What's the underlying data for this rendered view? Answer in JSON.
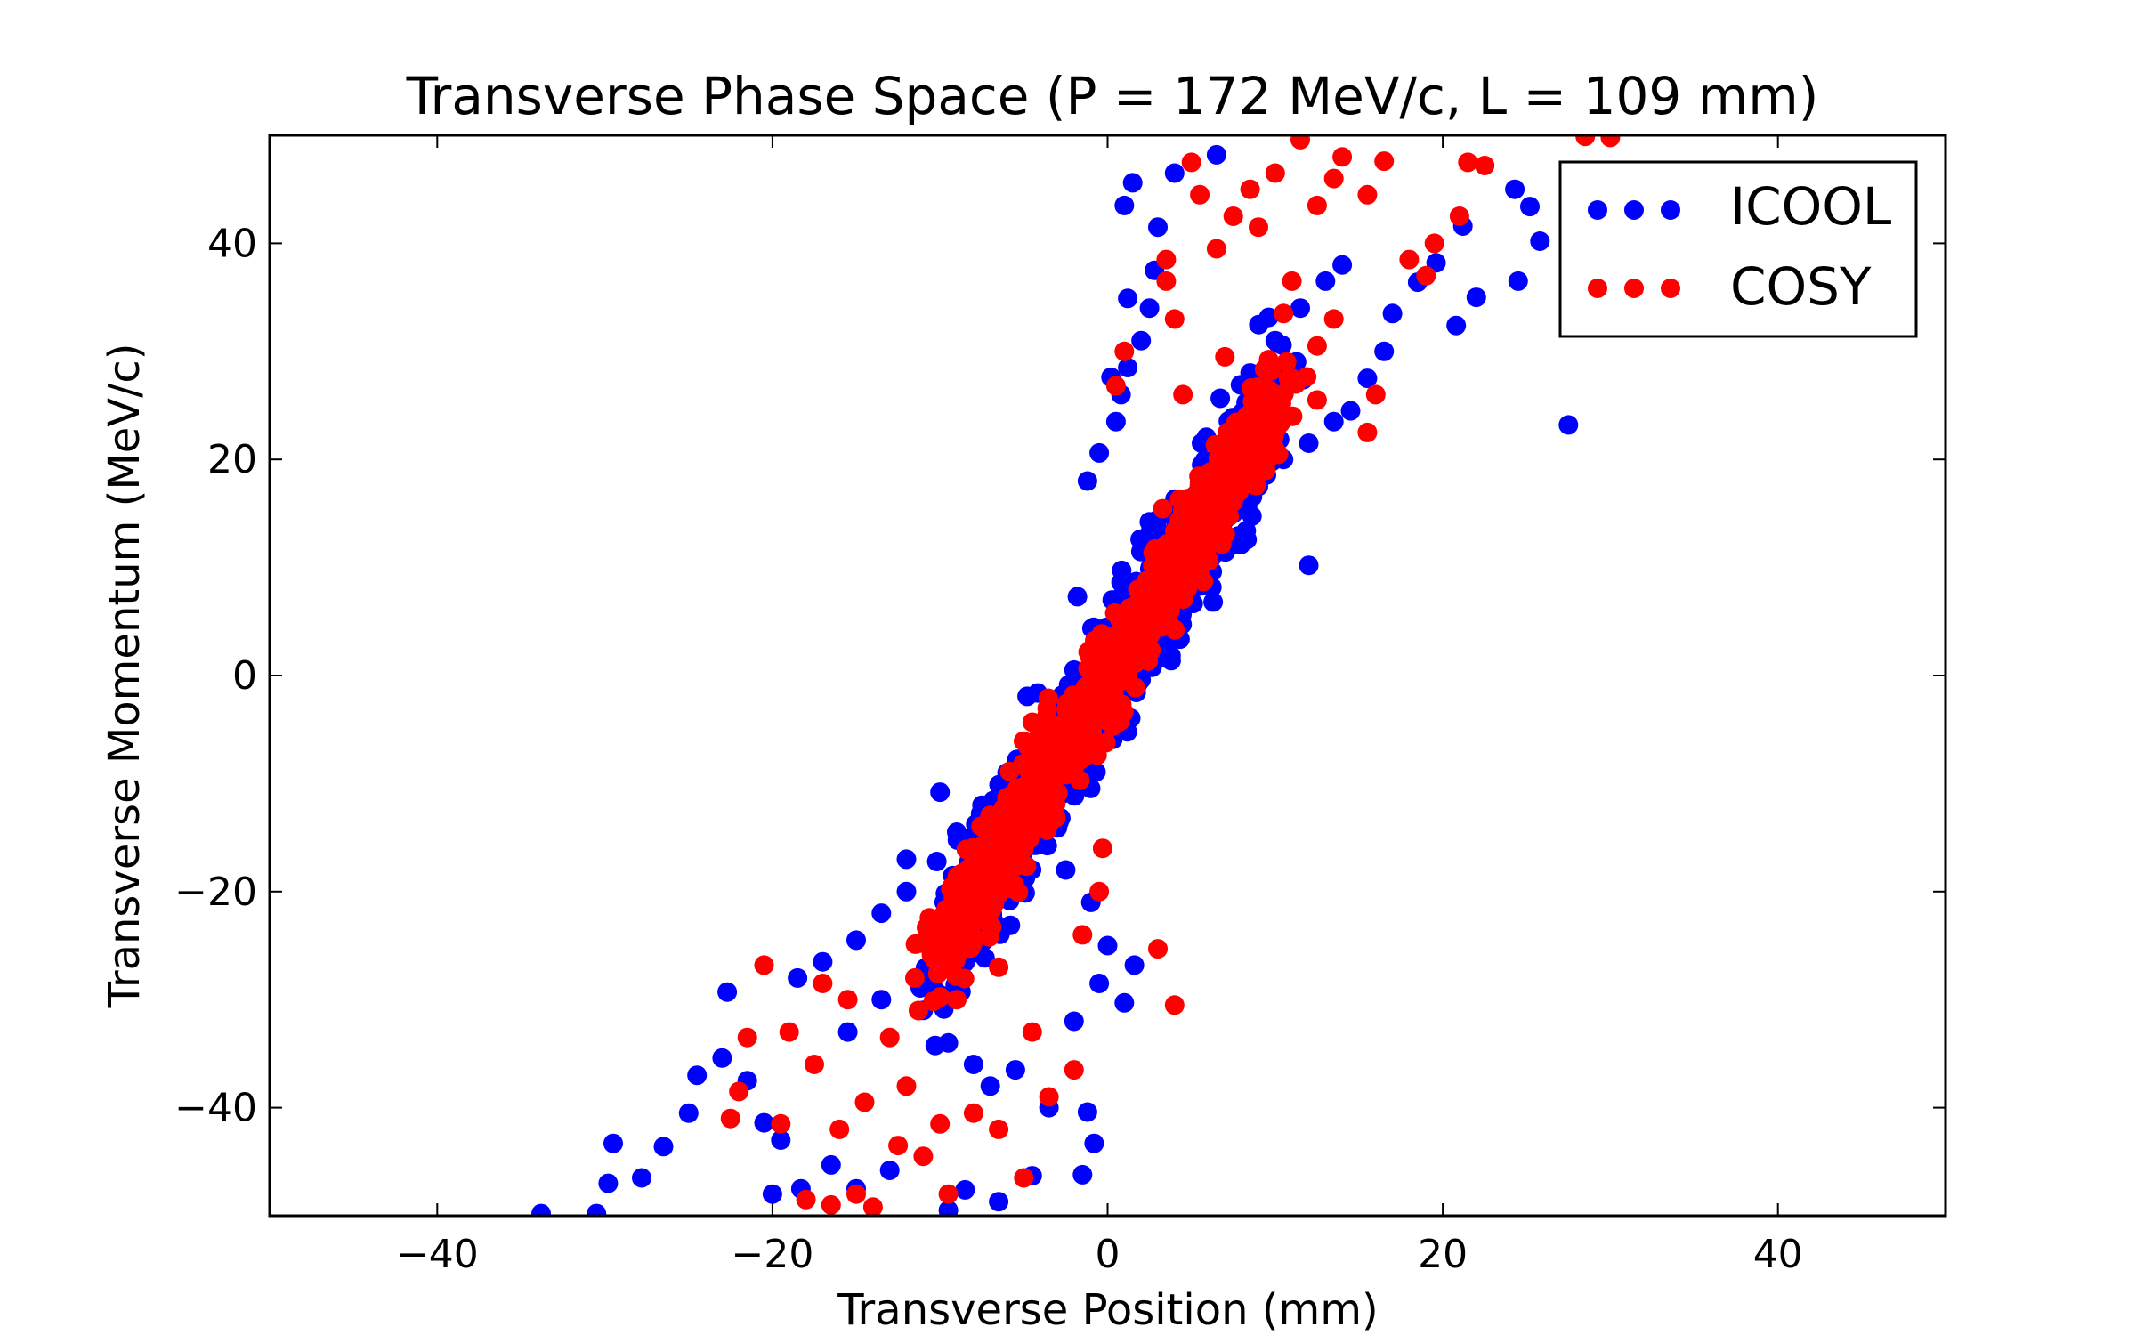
{
  "chart_data": {
    "type": "scatter",
    "title": "Transverse Phase Space (P = 172 MeV/c, L = 109 mm)",
    "xlabel": "Transverse Position (mm)",
    "ylabel": "Transverse Momentum (MeV/c)",
    "xlim": [
      -50,
      50
    ],
    "ylim": [
      -50,
      50
    ],
    "xticks": [
      -40,
      -20,
      0,
      20,
      40
    ],
    "yticks": [
      -40,
      -20,
      0,
      20,
      40
    ],
    "xtick_labels": [
      "−40",
      "−20",
      "0",
      "20",
      "40"
    ],
    "ytick_labels": [
      "−40",
      "−20",
      "0",
      "20",
      "40"
    ],
    "grid": false,
    "legend_position": "top-right",
    "series": [
      {
        "name": "ICOOL",
        "color": "#0000ff",
        "core_trend": {
          "slope": 2.5,
          "x_range": [
            -10,
            10
          ]
        },
        "points": [
          [
            27.5,
            23.2
          ],
          [
            24.5,
            36.5
          ],
          [
            25.8,
            40.2
          ],
          [
            25.2,
            43.4
          ],
          [
            24.3,
            45.0
          ],
          [
            22.0,
            35.0
          ],
          [
            21.2,
            41.6
          ],
          [
            20.8,
            32.4
          ],
          [
            19.6,
            38.2
          ],
          [
            18.5,
            36.4
          ],
          [
            12.0,
            10.2
          ],
          [
            1.0,
            43.5
          ],
          [
            1.5,
            45.6
          ],
          [
            3.0,
            41.5
          ],
          [
            6.5,
            48.2
          ],
          [
            4.0,
            46.5
          ],
          [
            2.0,
            31.0
          ],
          [
            1.2,
            34.9
          ],
          [
            0.2,
            27.6
          ],
          [
            -0.5,
            20.6
          ],
          [
            -1.2,
            18.0
          ],
          [
            -1.8,
            7.3
          ],
          [
            -2.0,
            0.5
          ],
          [
            -10.0,
            -10.8
          ],
          [
            -12.0,
            -17.0
          ],
          [
            -33.8,
            -49.8
          ],
          [
            -30.5,
            -49.8
          ],
          [
            -29.8,
            -47.0
          ],
          [
            -29.5,
            -43.3
          ],
          [
            -27.8,
            -46.5
          ],
          [
            -26.5,
            -43.6
          ],
          [
            -25.0,
            -40.5
          ],
          [
            -24.5,
            -37.0
          ],
          [
            -23.0,
            -35.4
          ],
          [
            -22.7,
            -29.3
          ],
          [
            -21.5,
            -37.5
          ],
          [
            -20.5,
            -41.4
          ],
          [
            -19.5,
            -43.0
          ],
          [
            -20.0,
            -48.0
          ],
          [
            -18.3,
            -47.5
          ],
          [
            -16.5,
            -45.3
          ],
          [
            -15.0,
            -47.5
          ],
          [
            -13.0,
            -45.8
          ],
          [
            -9.5,
            -49.5
          ],
          [
            -8.5,
            -47.6
          ],
          [
            -6.5,
            -48.7
          ],
          [
            -4.5,
            -46.3
          ],
          [
            -1.5,
            -46.2
          ],
          [
            -0.8,
            -43.3
          ],
          [
            -1.2,
            -40.4
          ],
          [
            -3.5,
            -40.0
          ],
          [
            -5.5,
            -36.5
          ],
          [
            -7.0,
            -38.0
          ],
          [
            1.0,
            -30.3
          ],
          [
            1.6,
            -26.8
          ],
          [
            -18.5,
            -28.0
          ],
          [
            -17.0,
            -26.5
          ],
          [
            -15.0,
            -24.5
          ],
          [
            -13.5,
            -22.0
          ],
          [
            -12.0,
            -20.0
          ],
          [
            -9.0,
            -14.5
          ],
          [
            -7.5,
            -12.0
          ],
          [
            -6.0,
            -9.0
          ],
          [
            -4.5,
            -7.0
          ],
          [
            -3.0,
            -3.5
          ],
          [
            -1.5,
            -1.0
          ],
          [
            0.0,
            2.0
          ],
          [
            1.5,
            5.0
          ],
          [
            3.0,
            7.5
          ],
          [
            4.5,
            10.0
          ],
          [
            6.0,
            12.5
          ],
          [
            7.5,
            15.0
          ],
          [
            9.0,
            17.5
          ],
          [
            10.5,
            20.0
          ],
          [
            12.0,
            21.5
          ],
          [
            13.5,
            23.5
          ],
          [
            14.5,
            24.5
          ],
          [
            15.5,
            27.5
          ],
          [
            16.5,
            30.0
          ],
          [
            17.0,
            33.5
          ],
          [
            0.5,
            23.5
          ],
          [
            0.8,
            26.0
          ],
          [
            1.2,
            28.5
          ],
          [
            2.5,
            34.0
          ],
          [
            2.8,
            37.5
          ],
          [
            8.5,
            28.0
          ],
          [
            10.0,
            31.0
          ],
          [
            11.5,
            34.0
          ],
          [
            13.0,
            36.5
          ],
          [
            14.0,
            38.0
          ],
          [
            -2.5,
            -18.0
          ],
          [
            -1.0,
            -21.0
          ],
          [
            0.0,
            -25.0
          ],
          [
            -0.5,
            -28.5
          ],
          [
            -2.0,
            -32.0
          ],
          [
            -11.0,
            -31.0
          ],
          [
            -9.5,
            -34.0
          ],
          [
            -8.0,
            -36.0
          ],
          [
            -13.5,
            -30.0
          ],
          [
            -15.5,
            -33.0
          ]
        ]
      },
      {
        "name": "COSY",
        "color": "#ff0000",
        "core_trend": {
          "slope": 2.5,
          "x_range": [
            -10,
            10
          ]
        },
        "points": [
          [
            30.0,
            49.8
          ],
          [
            28.5,
            49.9
          ],
          [
            22.5,
            47.2
          ],
          [
            21.5,
            47.5
          ],
          [
            21.0,
            42.5
          ],
          [
            19.5,
            40.0
          ],
          [
            19.0,
            37.0
          ],
          [
            18.0,
            38.5
          ],
          [
            16.5,
            47.6
          ],
          [
            15.5,
            44.5
          ],
          [
            14.0,
            48.0
          ],
          [
            13.5,
            46.0
          ],
          [
            12.5,
            43.5
          ],
          [
            11.5,
            49.6
          ],
          [
            10.0,
            46.5
          ],
          [
            9.0,
            41.5
          ],
          [
            7.5,
            42.5
          ],
          [
            6.5,
            39.5
          ],
          [
            5.5,
            44.5
          ],
          [
            5.0,
            47.5
          ],
          [
            3.5,
            36.5
          ],
          [
            4.0,
            33.0
          ],
          [
            0.5,
            26.8
          ],
          [
            1.0,
            30.0
          ],
          [
            12.5,
            25.5
          ],
          [
            15.5,
            22.5
          ],
          [
            16.0,
            26.0
          ],
          [
            3.5,
            38.5
          ],
          [
            8.5,
            45.0
          ],
          [
            11.0,
            36.5
          ],
          [
            3.0,
            -25.3
          ],
          [
            4.0,
            -30.5
          ],
          [
            -20.5,
            -26.8
          ],
          [
            -21.5,
            -33.5
          ],
          [
            -22.0,
            -38.5
          ],
          [
            -22.5,
            -41.0
          ],
          [
            -19.5,
            -41.5
          ],
          [
            -18.0,
            -48.5
          ],
          [
            -16.5,
            -49.0
          ],
          [
            -15.0,
            -48.0
          ],
          [
            -14.0,
            -49.2
          ],
          [
            -12.5,
            -43.5
          ],
          [
            -11.0,
            -44.5
          ],
          [
            -9.5,
            -48.0
          ],
          [
            -5.0,
            -46.5
          ],
          [
            -6.5,
            -42.0
          ],
          [
            -8.0,
            -40.5
          ],
          [
            -10.0,
            -41.5
          ],
          [
            -12.0,
            -38.0
          ],
          [
            -14.5,
            -39.5
          ],
          [
            -16.0,
            -42.0
          ],
          [
            -17.5,
            -36.0
          ],
          [
            -19.0,
            -33.0
          ],
          [
            -3.5,
            -39.0
          ],
          [
            -2.0,
            -36.5
          ],
          [
            -4.5,
            -33.0
          ],
          [
            -13.0,
            -33.5
          ],
          [
            -15.5,
            -30.0
          ],
          [
            -17.0,
            -28.5
          ],
          [
            -11.5,
            -28.0
          ],
          [
            -10.0,
            -24.5
          ],
          [
            -8.5,
            -20.0
          ],
          [
            -7.0,
            -16.0
          ],
          [
            -5.5,
            -12.0
          ],
          [
            -4.0,
            -8.5
          ],
          [
            -2.5,
            -5.0
          ],
          [
            -1.0,
            -1.0
          ],
          [
            0.5,
            3.0
          ],
          [
            2.0,
            7.0
          ],
          [
            3.5,
            11.0
          ],
          [
            5.0,
            15.0
          ],
          [
            6.5,
            18.0
          ],
          [
            8.0,
            21.0
          ],
          [
            9.5,
            24.0
          ],
          [
            11.0,
            27.5
          ],
          [
            12.5,
            30.5
          ],
          [
            13.5,
            33.0
          ],
          [
            10.5,
            33.5
          ],
          [
            7.0,
            29.5
          ],
          [
            4.5,
            26.0
          ],
          [
            -0.5,
            -20.0
          ],
          [
            -1.5,
            -24.0
          ],
          [
            -0.3,
            -16.0
          ],
          [
            -9.0,
            -30.0
          ],
          [
            -6.5,
            -27.0
          ]
        ]
      }
    ]
  }
}
